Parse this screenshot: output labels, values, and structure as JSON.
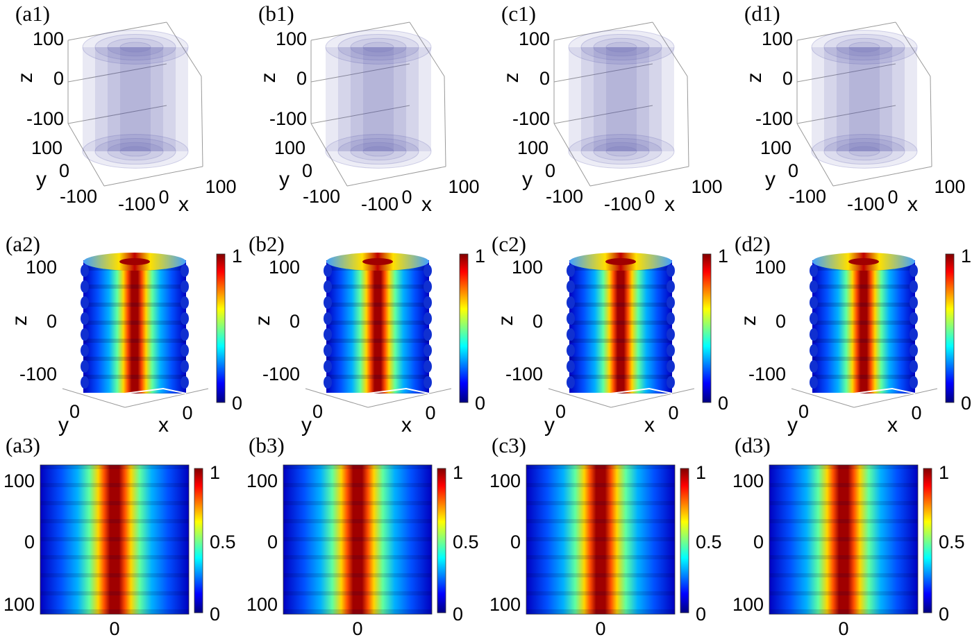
{
  "rows": [
    {
      "type": "isosurface-3d",
      "panels": [
        {
          "label": "(a1)"
        },
        {
          "label": "(b1)"
        },
        {
          "label": "(c1)"
        },
        {
          "label": "(d1)"
        }
      ],
      "z_axis": {
        "label": "z",
        "ticks": [
          "100",
          "0",
          "-100"
        ]
      },
      "y_axis": {
        "label": "y",
        "ticks": [
          "100",
          "0",
          "-100"
        ]
      },
      "x_axis": {
        "label": "x",
        "ticks": [
          "-100",
          "0",
          "100"
        ]
      },
      "color": "#4a4aa8"
    },
    {
      "type": "cutaway-3d",
      "panels": [
        {
          "label": "(a2)"
        },
        {
          "label": "(b2)"
        },
        {
          "label": "(c2)"
        },
        {
          "label": "(d2)"
        }
      ],
      "z_axis": {
        "label": "z",
        "ticks": [
          "100",
          "0",
          "-100"
        ]
      },
      "y_axis": {
        "label": "y",
        "tick": "0"
      },
      "x_axis": {
        "label": "x",
        "tick": "0"
      },
      "colorbar_ticks": [
        "1",
        "0"
      ]
    },
    {
      "type": "heatmap-2d",
      "panels": [
        {
          "label": "(a3)"
        },
        {
          "label": "(b3)"
        },
        {
          "label": "(c3)"
        },
        {
          "label": "(d3)"
        }
      ],
      "y_ticks": [
        "100",
        "0",
        "100"
      ],
      "x_tick": "0",
      "colorbar_ticks": [
        "1",
        "0.5",
        "0"
      ]
    }
  ],
  "colormap": "jet"
}
